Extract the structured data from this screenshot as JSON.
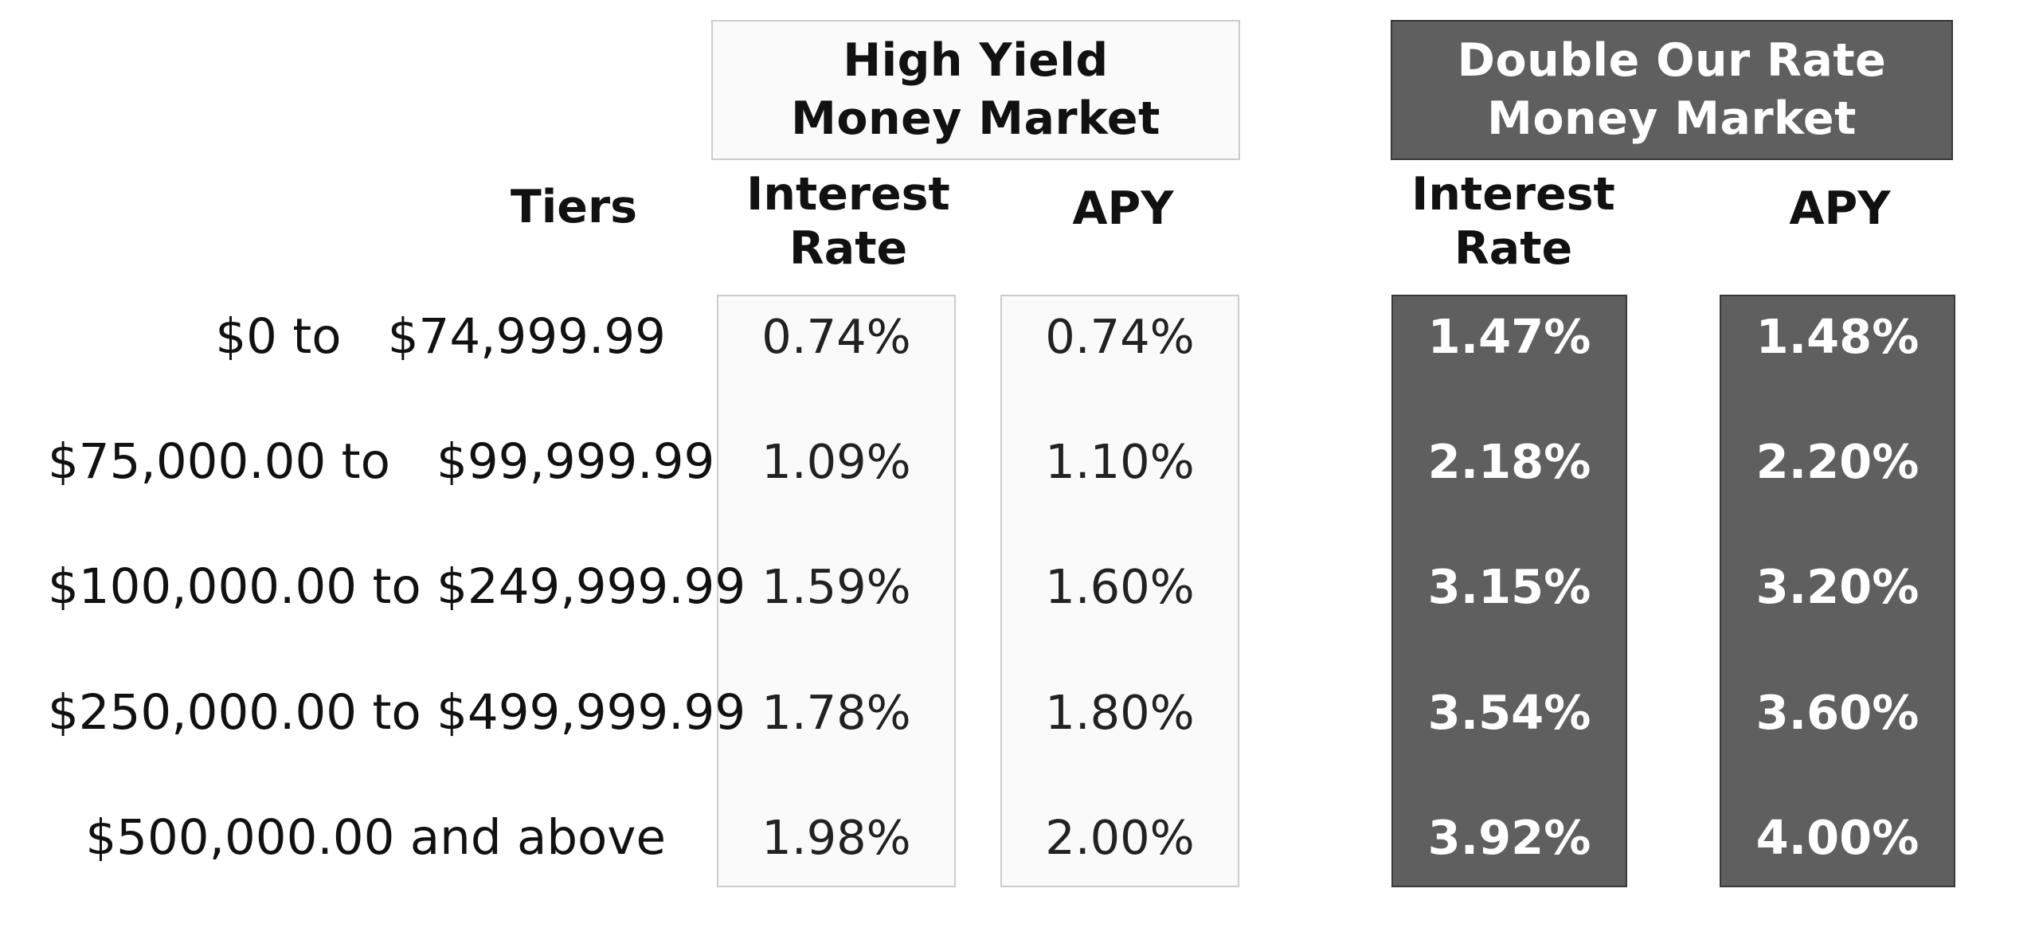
{
  "products": {
    "high_yield": {
      "line1": "High Yield",
      "line2": "Money Market"
    },
    "double_rate": {
      "line1": "Double Our Rate",
      "line2": "Money Market"
    }
  },
  "headers": {
    "tiers": "Tiers",
    "interest_rate_line1": "Interest",
    "interest_rate_line2": "Rate",
    "apy": "APY"
  },
  "rows": [
    {
      "tier": "$0 to   $74,999.99",
      "hy_rate": "0.74%",
      "hy_apy": "0.74%",
      "dr_rate": "1.47%",
      "dr_apy": "1.48%"
    },
    {
      "tier": "$75,000.00 to   $99,999.99",
      "hy_rate": "1.09%",
      "hy_apy": "1.10%",
      "dr_rate": "2.18%",
      "dr_apy": "2.20%"
    },
    {
      "tier": "$100,000.00 to $249,999.99",
      "hy_rate": "1.59%",
      "hy_apy": "1.60%",
      "dr_rate": "3.15%",
      "dr_apy": "3.20%"
    },
    {
      "tier": "$250,000.00 to $499,999.99",
      "hy_rate": "1.78%",
      "hy_apy": "1.80%",
      "dr_rate": "3.54%",
      "dr_apy": "3.60%"
    },
    {
      "tier": "$500,000.00 and above",
      "hy_rate": "1.98%",
      "hy_apy": "2.00%",
      "dr_rate": "3.92%",
      "dr_apy": "4.00%"
    }
  ],
  "colors": {
    "light_box": "#fafafa",
    "light_border": "#cccccc",
    "dark_box": "#5f5f5f",
    "dark_border": "#3a3a3a"
  }
}
